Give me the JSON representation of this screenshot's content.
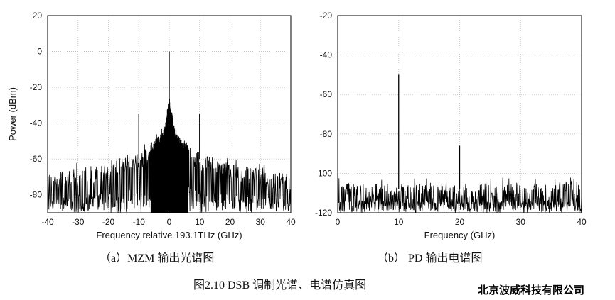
{
  "chart_data": [
    {
      "type": "line",
      "caption": "（a）MZM 输出光谱图",
      "xlabel": "Frequency relative 193.1THz (GHz)",
      "ylabel": "Power (dBm)",
      "xlim": [
        -40,
        40
      ],
      "ylim": [
        -90,
        20
      ],
      "xticks": [
        -40,
        -30,
        -20,
        -10,
        0,
        10,
        20,
        30,
        40
      ],
      "yticks": [
        20,
        0,
        -20,
        -40,
        -60,
        -80
      ],
      "grid": true,
      "peaks": [
        {
          "x": 0,
          "y": 0
        },
        {
          "x": -10,
          "y": -35
        },
        {
          "x": 10,
          "y": -35
        }
      ],
      "noise_envelope": {
        "x": [
          -40,
          -20,
          -10,
          -2,
          0,
          2,
          10,
          20,
          40
        ],
        "y_top": [
          -68,
          -62,
          -57,
          -45,
          -25,
          -45,
          -57,
          -62,
          -68
        ],
        "y_bottom": -90
      },
      "color": "#000000"
    },
    {
      "type": "line",
      "caption": "（b） PD 输出电谱图",
      "xlabel": "Frequency (GHz)",
      "ylabel": "",
      "xlim": [
        0,
        40
      ],
      "ylim": [
        -120,
        -20
      ],
      "xticks": [
        0,
        10,
        20,
        30,
        40
      ],
      "yticks": [
        -20,
        -40,
        -60,
        -80,
        -100,
        -120
      ],
      "grid": true,
      "peaks": [
        {
          "x": 10,
          "y": -50
        },
        {
          "x": 20,
          "y": -86
        }
      ],
      "noise_envelope": {
        "x": [
          0,
          40
        ],
        "y_top": [
          -105,
          -105
        ],
        "y_bottom": -120
      },
      "color": "#000000"
    }
  ],
  "figure_caption": "图2.10 DSB 调制光谱、电谱仿真图",
  "watermark": "北京波威科技有限公司"
}
